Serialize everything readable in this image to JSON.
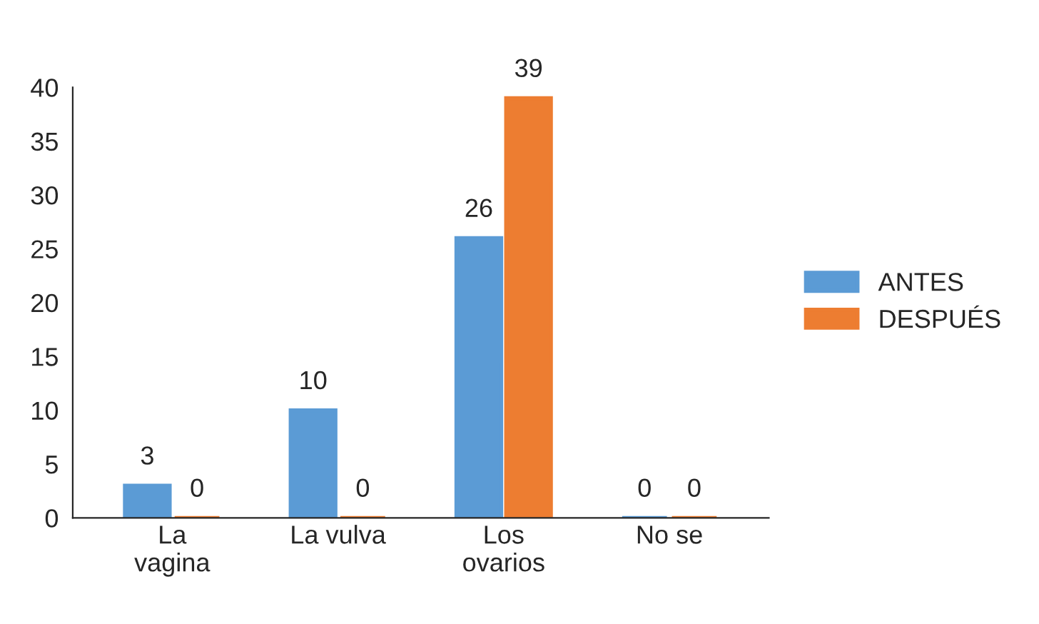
{
  "chart_data": {
    "type": "bar",
    "categories": [
      "La\nvagina",
      "La vulva",
      "Los\novarios",
      "No se"
    ],
    "series": [
      {
        "name": "ANTES",
        "color": "#5b9bd5",
        "values": [
          3,
          10,
          26,
          0
        ]
      },
      {
        "name": "DESPUÉS",
        "color": "#ed7d31",
        "values": [
          0,
          0,
          39,
          0
        ]
      }
    ],
    "ylim": [
      0,
      40
    ],
    "yticks": [
      0,
      5,
      10,
      15,
      20,
      25,
      30,
      35,
      40
    ],
    "grid": false,
    "legend": "right",
    "data_labels": true
  }
}
